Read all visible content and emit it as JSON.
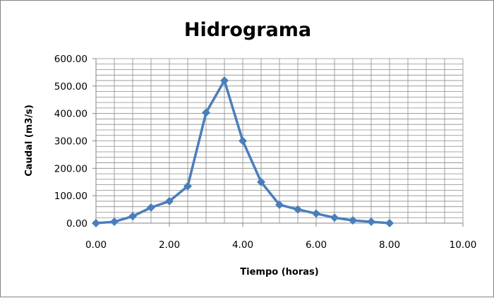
{
  "chart_data": {
    "type": "scatter",
    "title": "Hidrograma",
    "xlabel": "Tiempo (horas)",
    "ylabel": "Caudal (m3/s)",
    "xlim": [
      0,
      10
    ],
    "ylim": [
      0,
      600
    ],
    "x_ticks": [
      "0.00",
      "2.00",
      "4.00",
      "6.00",
      "8.00",
      "10.00"
    ],
    "y_ticks": [
      "0.00",
      "100.00",
      "200.00",
      "300.00",
      "400.00",
      "500.00",
      "600.00"
    ],
    "grid": true,
    "legend": "none",
    "series": [
      {
        "color": "#4A7EBB",
        "marker": "diamond",
        "x": [
          0,
          0.5,
          1,
          1.5,
          2,
          2.5,
          3,
          3.5,
          4,
          4.5,
          5,
          5.5,
          6,
          6.5,
          7,
          7.5,
          8
        ],
        "y": [
          0,
          5,
          25,
          57,
          80,
          135,
          403,
          520,
          300,
          150,
          67,
          50,
          35,
          20,
          10,
          5,
          0
        ]
      }
    ]
  }
}
